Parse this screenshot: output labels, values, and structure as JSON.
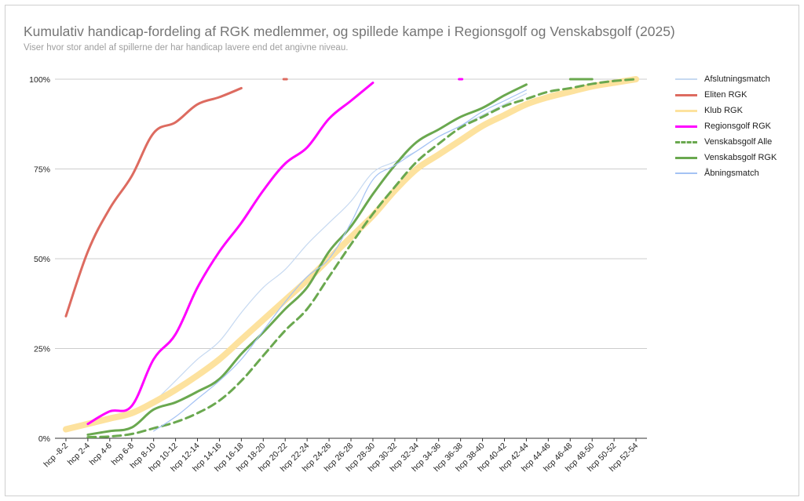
{
  "chart_data": {
    "type": "line",
    "title": "Kumulativ handicap-fordeling af RGK medlemmer, og spillede kampe i Regionsgolf og Venskabsgolf (2025)",
    "subtitle": "Viser hvor stor andel af spillerne der har handicap lavere end det angivne niveau.",
    "xlabel": "",
    "ylabel": "",
    "categories": [
      "hcp -8-2",
      "hcp 2-4",
      "hcp 4-6",
      "hcp 6-8",
      "hcp 8-10",
      "hcp 10-12",
      "hcp 12-14",
      "hcp 14-16",
      "hcp 16-18",
      "hcp 18-20",
      "hcp 20-22",
      "hcp 22-24",
      "hcp 24-26",
      "hcp 26-28",
      "hcp 28-30",
      "hcp 30-32",
      "hcp 32-34",
      "hcp 34-36",
      "hcp 36-38",
      "hcp 38-40",
      "hcp 40-42",
      "hcp 42-44",
      "hcp 44-46",
      "hcp 46-48",
      "hcp 48-50",
      "hcp 50-52",
      "hcp 52-54"
    ],
    "ylim": [
      0,
      1
    ],
    "yticks": [
      0,
      0.25,
      0.5,
      0.75,
      1
    ],
    "ytick_labels": [
      "0%",
      "25%",
      "50%",
      "75%",
      "100%"
    ],
    "grid": true,
    "legend_position": "right",
    "series": [
      {
        "name": "Afslutningsmatch",
        "color": "#c6d9f1",
        "width": 1.2,
        "dash": "",
        "values": [
          null,
          null,
          null,
          null,
          0.1,
          0.16,
          0.22,
          0.27,
          0.35,
          0.42,
          0.47,
          0.54,
          0.6,
          0.66,
          0.74,
          0.77,
          0.8,
          0.84,
          0.87,
          0.9,
          0.93,
          0.96,
          null,
          null,
          null,
          null,
          null
        ]
      },
      {
        "name": "Eliten RGK",
        "color": "#dd6b60",
        "width": 3,
        "dash": "",
        "values": [
          0.34,
          0.52,
          0.64,
          0.73,
          0.85,
          0.88,
          0.93,
          0.95,
          0.975,
          null,
          1.0,
          null,
          null,
          null,
          null,
          null,
          null,
          null,
          null,
          null,
          null,
          null,
          null,
          null,
          null,
          null,
          null
        ]
      },
      {
        "name": "Klub RGK",
        "color": "#fde29e",
        "width": 8,
        "dash": "",
        "values": [
          0.025,
          0.04,
          0.055,
          0.07,
          0.1,
          0.135,
          0.175,
          0.22,
          0.275,
          0.33,
          0.385,
          0.44,
          0.5,
          0.56,
          0.62,
          0.69,
          0.75,
          0.79,
          0.83,
          0.87,
          0.9,
          0.93,
          0.95,
          0.965,
          0.98,
          0.99,
          1.0
        ]
      },
      {
        "name": "Regionsgolf RGK",
        "color": "#ff00ff",
        "width": 3,
        "dash": "",
        "values": [
          null,
          0.04,
          0.075,
          0.09,
          0.22,
          0.29,
          0.42,
          0.52,
          0.6,
          0.69,
          0.765,
          0.81,
          0.89,
          0.94,
          0.99,
          null,
          null,
          null,
          1.0,
          null,
          null,
          null,
          null,
          null,
          null,
          null,
          null
        ]
      },
      {
        "name": "Venskabsgolf Alle",
        "color": "#6aa84f",
        "width": 3,
        "dash": "10 6",
        "values": [
          null,
          0.003,
          0.005,
          0.012,
          0.028,
          0.045,
          0.07,
          0.105,
          0.16,
          0.23,
          0.3,
          0.36,
          0.45,
          0.54,
          0.625,
          0.7,
          0.77,
          0.82,
          0.865,
          0.895,
          0.925,
          0.945,
          0.965,
          0.975,
          0.987,
          0.995,
          1.0
        ]
      },
      {
        "name": "Venskabsgolf RGK",
        "color": "#6aa84f",
        "width": 3,
        "dash": "",
        "values": [
          null,
          0.01,
          0.02,
          0.03,
          0.08,
          0.1,
          0.13,
          0.165,
          0.235,
          0.295,
          0.36,
          0.42,
          0.52,
          0.59,
          0.68,
          0.76,
          0.825,
          0.86,
          0.895,
          0.92,
          0.955,
          0.985,
          null,
          1.0,
          1.0,
          null,
          null
        ]
      },
      {
        "name": "Åbningsmatch",
        "color": "#a4c2f4",
        "width": 1.2,
        "dash": "",
        "values": [
          null,
          null,
          null,
          null,
          0.02,
          0.06,
          0.11,
          0.16,
          0.22,
          0.3,
          0.38,
          0.45,
          0.5,
          0.6,
          0.72,
          0.76,
          0.8,
          0.84,
          0.87,
          0.91,
          0.94,
          0.97,
          null,
          null,
          null,
          null,
          null
        ]
      }
    ]
  }
}
